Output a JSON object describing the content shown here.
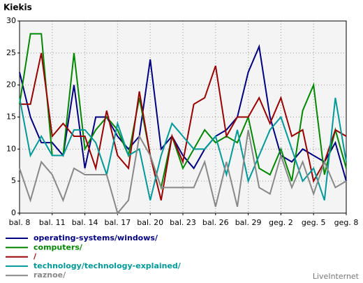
{
  "chart_data": {
    "type": "line",
    "title": "Kiekis",
    "footer": "LiveInternet",
    "categories": [
      "bal. 8",
      null,
      null,
      "bal. 11",
      null,
      null,
      "bal. 14",
      null,
      null,
      "bal. 17",
      null,
      null,
      "bal. 20",
      null,
      null,
      "bal. 23",
      null,
      null,
      "bal. 26",
      null,
      null,
      "bal. 29",
      null,
      null,
      "geg. 2",
      null,
      null,
      "geg. 5",
      null,
      null,
      "geg. 8"
    ],
    "ylim": [
      0,
      30
    ],
    "yticks": [
      0,
      5,
      10,
      15,
      20,
      25,
      30
    ],
    "grid": true,
    "series": [
      {
        "name": "operating-systems/windows/",
        "color": "#000080",
        "values": [
          22,
          15,
          11,
          11,
          9,
          20,
          7,
          15,
          15,
          12,
          10,
          12,
          24,
          10,
          12,
          9,
          7,
          10,
          12,
          13,
          15,
          22,
          26,
          15,
          9,
          8,
          10,
          9,
          8,
          11,
          5
        ]
      },
      {
        "name": "computers/",
        "color": "#008800",
        "values": [
          17,
          28,
          28,
          9,
          9,
          25,
          10,
          13,
          15,
          13,
          9,
          18,
          9,
          4,
          12,
          7,
          10,
          13,
          11,
          12,
          11,
          15,
          7,
          6,
          10,
          5,
          16,
          20,
          6,
          13,
          7
        ]
      },
      {
        "name": "/",
        "color": "#990000",
        "values": [
          17,
          17,
          25,
          12,
          14,
          12,
          12,
          7,
          16,
          9,
          7,
          19,
          9,
          2,
          12,
          8,
          17,
          18,
          23,
          12,
          15,
          15,
          18,
          14,
          18,
          12,
          13,
          5,
          8,
          13,
          12
        ]
      },
      {
        "name": "technology/technology-explained/",
        "color": "#009999",
        "values": [
          18,
          9,
          12,
          9,
          9,
          13,
          13,
          11,
          6,
          14,
          9,
          10,
          2,
          9,
          14,
          12,
          10,
          10,
          12,
          6,
          13,
          5,
          9,
          13,
          15,
          10,
          5,
          7,
          2,
          18,
          8
        ]
      },
      {
        "name": "raznoe/",
        "color": "#888888",
        "values": [
          7,
          2,
          8,
          6,
          2,
          7,
          6,
          6,
          6,
          0,
          2,
          12,
          9,
          4,
          4,
          4,
          4,
          8,
          1,
          8,
          1,
          13,
          4,
          3,
          9,
          4,
          8,
          3,
          8,
          4,
          5
        ]
      }
    ]
  }
}
